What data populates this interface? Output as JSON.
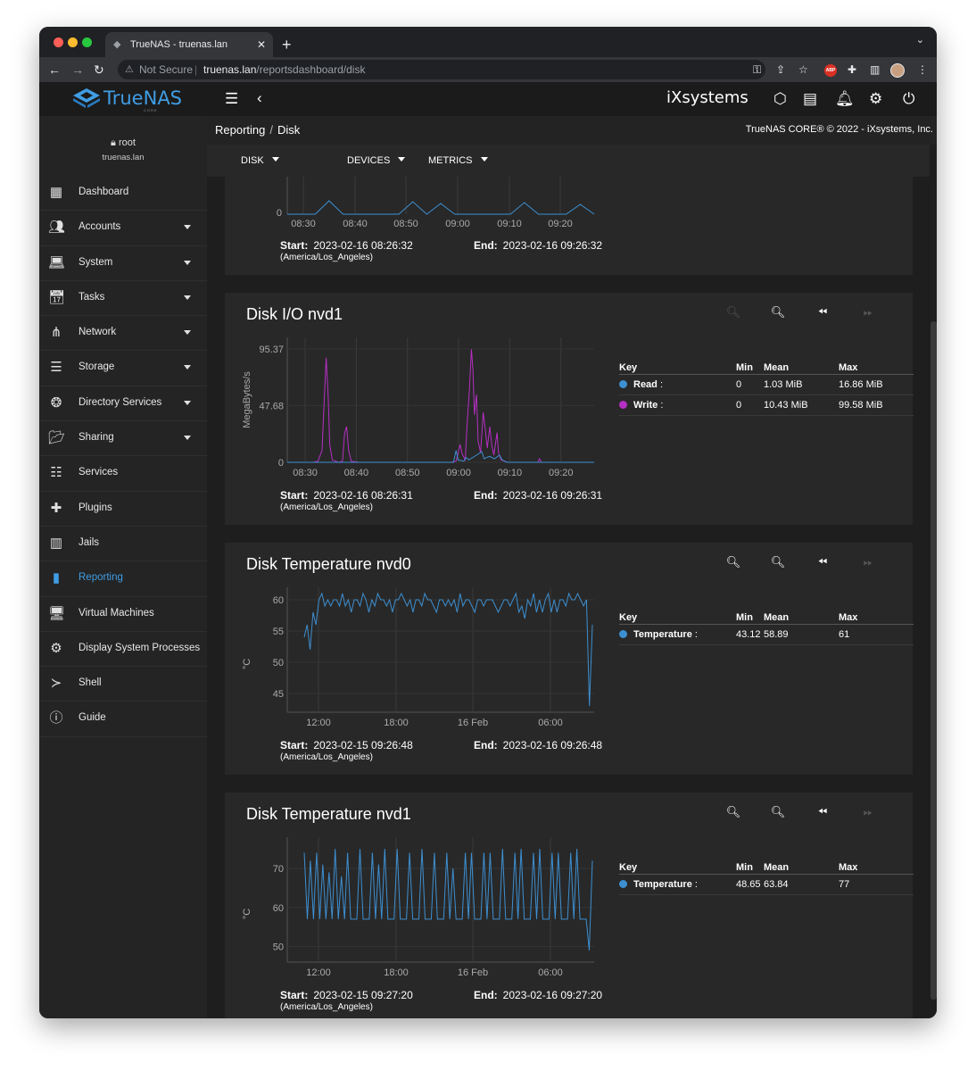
{
  "browser": {
    "tab_title": "TrueNAS - truenas.lan",
    "security": "Not Secure",
    "url_host": "truenas.lan",
    "url_path": "/reportsdashboard/disk"
  },
  "app": {
    "logo_text": "TrueNAS",
    "logo_sub": "CORE",
    "vendor": "iXsystems"
  },
  "sidebar": {
    "user": "root",
    "host": "truenas.lan",
    "items": [
      {
        "label": "Dashboard",
        "icon": "dashboard-icon",
        "expandable": false
      },
      {
        "label": "Accounts",
        "icon": "accounts-icon",
        "expandable": true
      },
      {
        "label": "System",
        "icon": "laptop-icon",
        "expandable": true
      },
      {
        "label": "Tasks",
        "icon": "calendar-icon",
        "expandable": true
      },
      {
        "label": "Network",
        "icon": "network-icon",
        "expandable": true
      },
      {
        "label": "Storage",
        "icon": "storage-icon",
        "expandable": true
      },
      {
        "label": "Directory Services",
        "icon": "directory-icon",
        "expandable": true
      },
      {
        "label": "Sharing",
        "icon": "folder-share-icon",
        "expandable": true
      },
      {
        "label": "Services",
        "icon": "tune-icon",
        "expandable": false
      },
      {
        "label": "Plugins",
        "icon": "puzzle-icon",
        "expandable": false
      },
      {
        "label": "Jails",
        "icon": "jail-icon",
        "expandable": false
      },
      {
        "label": "Reporting",
        "icon": "chart-icon",
        "expandable": false,
        "active": true
      },
      {
        "label": "Virtual Machines",
        "icon": "computer-icon",
        "expandable": false
      },
      {
        "label": "Display System Processes",
        "icon": "processes-icon",
        "expandable": false
      },
      {
        "label": "Shell",
        "icon": "terminal-icon",
        "expandable": false
      },
      {
        "label": "Guide",
        "icon": "info-icon",
        "expandable": false
      }
    ]
  },
  "breadcrumb": {
    "section": "Reporting",
    "page": "Disk"
  },
  "copyright": "TrueNAS CORE® © 2022 - iXsystems, Inc.",
  "toolbar": {
    "disk": "DISK",
    "devices": "DEVICES",
    "metrics": "METRICS"
  },
  "cards": [
    {
      "id": "partial",
      "x_ticks": [
        "08:30",
        "08:40",
        "08:50",
        "09:00",
        "09:10",
        "09:20"
      ],
      "y_tick": "0",
      "start_label": "Start:",
      "start": "2023-02-16 08:26:32",
      "end_label": "End:",
      "end": "2023-02-16 09:26:32",
      "tz": "(America/Los_Angeles)"
    },
    {
      "id": "io-nvd1",
      "title": "Disk I/O nvd1",
      "start_label": "Start:",
      "start": "2023-02-16 08:26:31",
      "end_label": "End:",
      "end": "2023-02-16 09:26:31",
      "tz": "(America/Los_Angeles)",
      "legend": {
        "headers": [
          "Key",
          "Min",
          "Mean",
          "Max"
        ],
        "rows": [
          {
            "name": "Read",
            "min": "0",
            "mean": "1.03 MiB",
            "max": "16.86 MiB",
            "color": "#3d8fd1"
          },
          {
            "name": "Write",
            "min": "0",
            "mean": "10.43 MiB",
            "max": "99.58 MiB",
            "color": "#b62fc4"
          }
        ]
      }
    },
    {
      "id": "temp-nvd0",
      "title": "Disk Temperature nvd0",
      "start_label": "Start:",
      "start": "2023-02-15 09:26:48",
      "end_label": "End:",
      "end": "2023-02-16 09:26:48",
      "tz": "(America/Los_Angeles)",
      "legend": {
        "headers": [
          "Key",
          "Min",
          "Mean",
          "Max"
        ],
        "rows": [
          {
            "name": "Temperature",
            "min": "43.12",
            "mean": "58.89",
            "max": "61",
            "color": "#3d8fd1"
          }
        ]
      }
    },
    {
      "id": "temp-nvd1",
      "title": "Disk Temperature nvd1",
      "start_label": "Start:",
      "start": "2023-02-15 09:27:20",
      "end_label": "End:",
      "end": "2023-02-16 09:27:20",
      "tz": "(America/Los_Angeles)",
      "legend": {
        "headers": [
          "Key",
          "Min",
          "Mean",
          "Max"
        ],
        "rows": [
          {
            "name": "Temperature",
            "min": "48.65",
            "mean": "63.84",
            "max": "77",
            "color": "#3d8fd1"
          }
        ]
      }
    }
  ],
  "chart_data": [
    {
      "type": "line",
      "x_ticks": [
        "08:30",
        "08:40",
        "08:50",
        "09:00",
        "09:10",
        "09:20"
      ],
      "y_ticks": [
        "0"
      ],
      "series": [
        {
          "values": [
            0,
            0,
            0,
            1.5,
            0,
            0,
            0,
            0,
            0,
            1.4,
            0,
            1.2,
            0,
            0,
            0,
            0,
            0,
            1.3,
            0,
            0,
            0,
            1.1,
            0
          ]
        }
      ]
    },
    {
      "type": "line",
      "ylabel": "MegaBytes/s",
      "y_ticks": [
        "0",
        "47.68",
        "95.37"
      ],
      "ylim": [
        0,
        105
      ],
      "x_ticks": [
        "08:30",
        "08:40",
        "08:50",
        "09:00",
        "09:10",
        "09:20"
      ],
      "x_start_min": 0,
      "x_tick_minutes": [
        3.5,
        13.5,
        23.5,
        33.5,
        43.5,
        53.5
      ],
      "series": [
        {
          "name": "Write",
          "color": "#b62fc4",
          "points": [
            [
              0,
              0
            ],
            [
              5,
              0
            ],
            [
              6,
              1
            ],
            [
              6.8,
              10
            ],
            [
              7.2,
              50
            ],
            [
              7.6,
              88
            ],
            [
              8,
              55
            ],
            [
              8.3,
              15
            ],
            [
              8.8,
              2
            ],
            [
              10,
              0
            ],
            [
              10.8,
              1
            ],
            [
              11.2,
              24
            ],
            [
              11.6,
              30
            ],
            [
              12,
              10
            ],
            [
              12.5,
              1
            ],
            [
              14,
              0
            ],
            [
              32,
              0
            ],
            [
              33,
              1
            ],
            [
              33.8,
              15
            ],
            [
              34.2,
              7
            ],
            [
              34.8,
              2
            ],
            [
              35.2,
              35
            ],
            [
              35.6,
              60
            ],
            [
              36,
              95
            ],
            [
              36.3,
              78
            ],
            [
              36.6,
              40
            ],
            [
              37,
              57
            ],
            [
              37.3,
              18
            ],
            [
              37.8,
              8
            ],
            [
              38.3,
              42
            ],
            [
              38.7,
              28
            ],
            [
              39.1,
              12
            ],
            [
              39.6,
              30
            ],
            [
              40,
              14
            ],
            [
              40.4,
              6
            ],
            [
              41,
              25
            ],
            [
              41.3,
              8
            ],
            [
              41.8,
              2
            ],
            [
              43,
              0
            ],
            [
              49,
              0
            ],
            [
              49.3,
              3
            ],
            [
              49.7,
              0
            ],
            [
              60,
              0
            ]
          ]
        },
        {
          "name": "Read",
          "color": "#3d8fd1",
          "points": [
            [
              0,
              0
            ],
            [
              32.5,
              0
            ],
            [
              33,
              10
            ],
            [
              33.4,
              2
            ],
            [
              34.5,
              1
            ],
            [
              35,
              4
            ],
            [
              35.5,
              2
            ],
            [
              37,
              6
            ],
            [
              38,
              9
            ],
            [
              38.5,
              3
            ],
            [
              39.5,
              5
            ],
            [
              40.5,
              3
            ],
            [
              41.5,
              6
            ],
            [
              42,
              2
            ],
            [
              43,
              0
            ],
            [
              60,
              0
            ]
          ]
        }
      ]
    },
    {
      "type": "line",
      "ylabel": "°C",
      "y_ticks": [
        "45",
        "50",
        "55",
        "60"
      ],
      "ylim": [
        42,
        62
      ],
      "x_ticks": [
        "12:00",
        "18:00",
        "16 Feb",
        "06:00"
      ],
      "series": [
        {
          "name": "Temperature",
          "color": "#3d8fd1",
          "values": [
            54,
            56,
            52,
            58,
            56,
            60,
            61,
            59,
            60,
            59,
            60,
            60,
            59,
            61,
            59,
            60,
            58,
            60,
            60,
            59,
            61,
            60,
            58,
            60,
            59,
            61,
            60,
            60,
            59,
            60,
            58,
            60,
            60,
            61,
            60,
            59,
            60,
            58,
            60,
            60,
            59,
            61,
            60,
            60,
            59,
            58,
            60,
            60,
            59,
            60,
            59,
            60,
            58,
            61,
            59,
            60,
            60,
            59,
            58,
            60,
            60,
            59,
            60,
            60,
            60,
            59,
            58,
            59,
            60,
            60,
            59,
            60,
            61,
            58,
            59,
            57,
            60,
            59,
            61,
            58,
            60,
            58,
            60,
            61,
            58,
            60,
            58,
            60,
            60,
            59,
            61,
            60,
            60,
            61,
            60,
            59,
            60,
            43,
            56
          ]
        }
      ]
    },
    {
      "type": "line",
      "ylabel": "°C",
      "y_ticks": [
        "50",
        "60",
        "70"
      ],
      "ylim": [
        46,
        78
      ],
      "x_ticks": [
        "12:00",
        "18:00",
        "16 Feb",
        "06:00"
      ],
      "series": [
        {
          "name": "Temperature",
          "color": "#3d8fd1",
          "values": [
            74,
            57,
            72,
            57,
            74,
            57,
            71,
            57,
            69,
            57,
            75,
            57,
            68,
            57,
            74,
            57,
            57,
            57,
            75,
            57,
            57,
            57,
            74,
            57,
            71,
            57,
            75,
            57,
            57,
            57,
            75,
            57,
            57,
            57,
            74,
            57,
            57,
            57,
            75,
            57,
            57,
            57,
            74,
            57,
            57,
            57,
            74,
            57,
            70,
            57,
            57,
            57,
            74,
            57,
            74,
            57,
            57,
            57,
            74,
            57,
            74,
            57,
            57,
            57,
            75,
            57,
            57,
            57,
            74,
            57,
            75,
            57,
            57,
            57,
            74,
            57,
            75,
            57,
            57,
            57,
            74,
            57,
            74,
            57,
            57,
            57,
            74,
            57,
            75,
            57,
            57,
            57,
            49,
            72
          ]
        }
      ]
    }
  ]
}
